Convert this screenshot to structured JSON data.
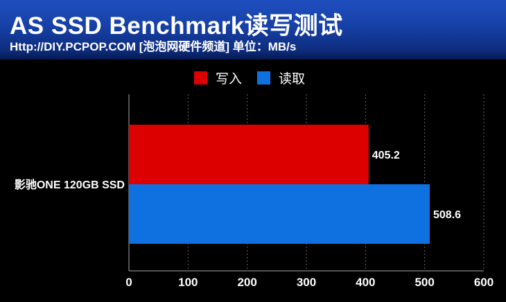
{
  "header": {
    "title": "AS SSD Benchmark读写测试",
    "subtitle": "Http://DIY.PCPOP.COM [泡泡网硬件频道] 单位：MB/s"
  },
  "chart_data": {
    "type": "bar",
    "orientation": "horizontal",
    "categories": [
      "影驰ONE 120GB SSD"
    ],
    "series": [
      {
        "name": "写入",
        "color": "#dd0000",
        "values": [
          405.2
        ]
      },
      {
        "name": "读取",
        "color": "#0f70e0",
        "values": [
          508.6
        ]
      }
    ],
    "x_ticks": [
      "0",
      "100",
      "200",
      "300",
      "400",
      "500",
      "600"
    ],
    "xlim": [
      0,
      600
    ],
    "data_labels": [
      "405.2",
      "508.6"
    ],
    "legend_position": "top",
    "grid": "vertical-dashed"
  }
}
